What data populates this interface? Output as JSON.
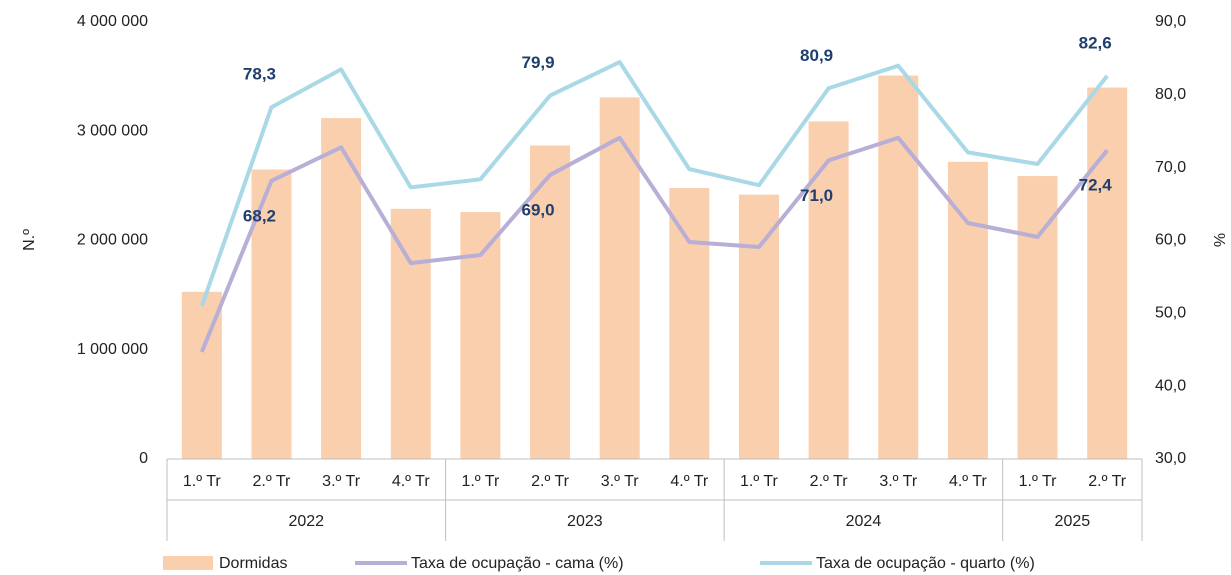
{
  "chart_data": {
    "type": "bar",
    "y_label": "N.º",
    "y2_label": "%",
    "categories": [
      "1.º Tr",
      "2.º Tr",
      "3.º Tr",
      "4.º Tr",
      "1.º Tr",
      "2.º Tr",
      "3.º Tr",
      "4.º Tr",
      "1.º Tr",
      "2.º Tr",
      "3.º Tr",
      "4.º Tr",
      "1.º Tr",
      "2.º Tr"
    ],
    "category_groups": [
      "2022",
      "2022",
      "2022",
      "2022",
      "2023",
      "2023",
      "2023",
      "2023",
      "2024",
      "2024",
      "2024",
      "2024",
      "2025",
      "2025"
    ],
    "series": [
      {
        "name": "Dormidas",
        "type": "bar",
        "color": "#f9cfae",
        "values": [
          1530000,
          2650000,
          3120000,
          2290000,
          2260000,
          2870000,
          3310000,
          2480000,
          2420000,
          3090000,
          3510000,
          2720000,
          2590000,
          3400000
        ]
      },
      {
        "name": "Taxa de ocupação - cama (%)",
        "type": "line",
        "axis": "y2",
        "color": "#b8aed6",
        "values": [
          44.7,
          68.2,
          72.8,
          56.9,
          58.0,
          69.0,
          74.1,
          59.8,
          59.1,
          71.0,
          74.1,
          62.4,
          60.5,
          72.4
        ],
        "value_labels": [
          null,
          "68,2",
          null,
          null,
          null,
          "69,0",
          null,
          null,
          null,
          "71,0",
          null,
          null,
          null,
          "72,4"
        ]
      },
      {
        "name": "Taxa de ocupação - quarto (%)",
        "type": "line",
        "axis": "y2",
        "color": "#a9d8e6",
        "values": [
          51.0,
          78.3,
          83.5,
          67.3,
          68.4,
          79.9,
          84.5,
          69.8,
          67.6,
          80.9,
          84.0,
          72.1,
          70.5,
          82.6
        ],
        "value_labels": [
          null,
          "78,3",
          null,
          null,
          null,
          "79,9",
          null,
          null,
          null,
          "80,9",
          null,
          null,
          null,
          "82,6"
        ]
      }
    ],
    "ylim": [
      0,
      4000000
    ],
    "yticks": [
      0,
      {
        "value": 1000000,
        "label": "1 000 000"
      },
      {
        "value": 2000000,
        "label": "2 000 000"
      },
      {
        "value": 3000000,
        "label": "3 000 000"
      },
      {
        "value": 4000000,
        "label": "4 000 000"
      }
    ],
    "y2lim": [
      30,
      90
    ],
    "y2ticks": [
      {
        "value": 30,
        "label": "30,0"
      },
      {
        "value": 40,
        "label": "40,0"
      },
      {
        "value": 50,
        "label": "50,0"
      },
      {
        "value": 60,
        "label": "60,0"
      },
      {
        "value": 70,
        "label": "70,0"
      },
      {
        "value": 80,
        "label": "80,0"
      },
      {
        "value": 90,
        "label": "90,0"
      }
    ],
    "legend": "bottom"
  }
}
